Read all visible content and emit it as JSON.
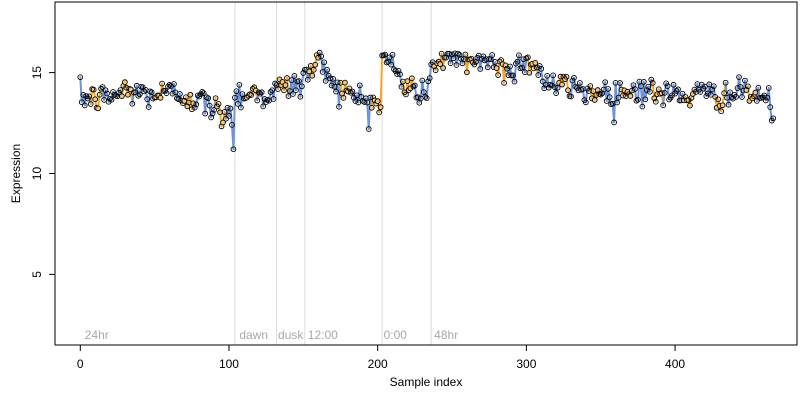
{
  "chart_data": {
    "type": "scatter",
    "title": "",
    "xlabel": "Sample index",
    "ylabel": "Expression",
    "xlim": [
      -17,
      482
    ],
    "ylim": [
      1.5,
      18.5
    ],
    "xticks": [
      0,
      100,
      200,
      300,
      400
    ],
    "yticks": [
      5,
      10,
      15
    ],
    "grid": false,
    "legend": "none",
    "colors": {
      "line_blue": "#7095d6",
      "line_orange": "#f0a830",
      "vline": "#dcdcdc",
      "point_stroke": "#000000",
      "axis": "#000000",
      "annotation": "#a9a9a9"
    },
    "vlines": [
      104,
      132,
      151,
      203,
      236
    ],
    "annotations": [
      {
        "x": 3,
        "label": "24hr"
      },
      {
        "x": 107,
        "label": "dawn"
      },
      {
        "x": 133,
        "label": "dusk"
      },
      {
        "x": 153,
        "label": "12:00"
      },
      {
        "x": 204,
        "label": "0:00"
      },
      {
        "x": 238,
        "label": "48hr"
      }
    ],
    "annotation_y": 2,
    "segments": [
      {
        "x_start": 0,
        "x_end": 104,
        "points": [
          [
            0,
            13.8
          ],
          [
            10,
            13.7
          ],
          [
            20,
            13.8
          ],
          [
            30,
            14.1
          ],
          [
            40,
            14.0
          ],
          [
            50,
            13.9
          ],
          [
            60,
            14.0
          ],
          [
            70,
            13.9
          ],
          [
            80,
            13.6
          ],
          [
            90,
            13.2
          ],
          [
            95,
            12.9
          ],
          [
            100,
            13.3
          ],
          [
            102,
            12.8
          ],
          [
            103,
            11.2
          ]
        ]
      },
      {
        "x_start": 104,
        "x_end": 132,
        "points": [
          [
            104,
            13.9
          ],
          [
            115,
            14.0
          ],
          [
            125,
            13.9
          ],
          [
            132,
            14.0
          ]
        ]
      },
      {
        "x_start": 132,
        "x_end": 151,
        "points": [
          [
            132,
            14.2
          ],
          [
            140,
            14.3
          ],
          [
            151,
            14.5
          ]
        ]
      },
      {
        "x_start": 151,
        "x_end": 203,
        "points": [
          [
            151,
            14.9
          ],
          [
            160,
            15.5
          ],
          [
            165,
            15.2
          ],
          [
            175,
            14.1
          ],
          [
            185,
            13.8
          ],
          [
            195,
            13.6
          ],
          [
            203,
            13.4
          ]
        ]
      },
      {
        "x_start": 203,
        "x_end": 236,
        "points": [
          [
            203,
            15.6
          ],
          [
            210,
            15.5
          ],
          [
            215,
            14.6
          ],
          [
            225,
            14.1
          ],
          [
            230,
            13.8
          ],
          [
            236,
            14.9
          ]
        ]
      },
      {
        "x_start": 236,
        "x_end": 467,
        "points": [
          [
            236,
            15.2
          ],
          [
            245,
            15.8
          ],
          [
            255,
            15.4
          ],
          [
            265,
            15.7
          ],
          [
            275,
            15.6
          ],
          [
            285,
            15.1
          ],
          [
            295,
            15.4
          ],
          [
            305,
            15.6
          ],
          [
            312,
            14.6
          ],
          [
            320,
            14.3
          ],
          [
            330,
            14.3
          ],
          [
            340,
            14.1
          ],
          [
            350,
            14.0
          ],
          [
            360,
            14.0
          ],
          [
            370,
            14.1
          ],
          [
            380,
            14.2
          ],
          [
            390,
            13.9
          ],
          [
            400,
            13.9
          ],
          [
            410,
            13.9
          ],
          [
            420,
            13.9
          ],
          [
            430,
            13.9
          ],
          [
            440,
            13.9
          ],
          [
            450,
            14.0
          ],
          [
            460,
            13.8
          ],
          [
            464,
            13.3
          ],
          [
            465,
            13.0
          ]
        ]
      }
    ],
    "noise_sd": 0.35,
    "point_count": 467
  }
}
